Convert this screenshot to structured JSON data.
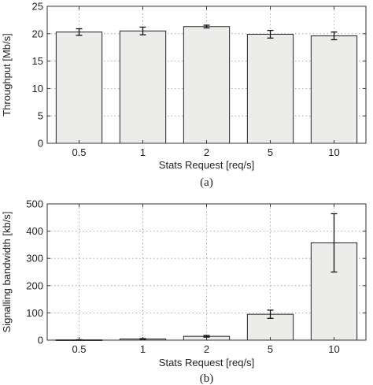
{
  "chart_data": [
    {
      "type": "bar",
      "caption": "(a)",
      "categories": [
        "0.5",
        "1",
        "2",
        "5",
        "10"
      ],
      "values": [
        20.3,
        20.5,
        21.3,
        19.9,
        19.6
      ],
      "errors": [
        0.6,
        0.7,
        0.25,
        0.7,
        0.7
      ],
      "xlabel": "Stats Request [req/s]",
      "ylabel": "Throughput [Mb/s]",
      "ylim": [
        0,
        25
      ],
      "yticks": [
        0,
        5,
        10,
        15,
        20,
        25
      ],
      "grid": true
    },
    {
      "type": "bar",
      "caption": "(b)",
      "categories": [
        "0.5",
        "1",
        "2",
        "5",
        "10"
      ],
      "values": [
        1,
        4,
        14,
        95,
        357
      ],
      "errors": [
        0.5,
        1.5,
        3,
        15,
        107
      ],
      "xlabel": "Stats Request [req/s]",
      "ylabel": "Signalling bandwidth [kb/s]",
      "ylim": [
        0,
        500
      ],
      "yticks": [
        0,
        100,
        200,
        300,
        400,
        500
      ],
      "grid": true
    }
  ]
}
